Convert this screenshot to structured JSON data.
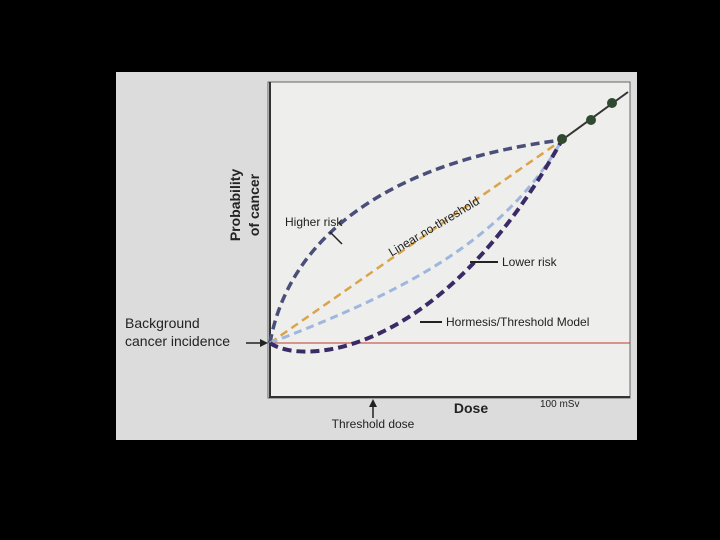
{
  "axes": {
    "y_label": [
      "Probability",
      "of cancer"
    ],
    "x_label": "Dose",
    "x_marker": "100 mSv"
  },
  "curves": {
    "higher": "Higher risk",
    "linear": "Linear no-threshold",
    "lower": "Lower risk",
    "hormesis": "Hormesis/Threshold Model"
  },
  "background": [
    "Background",
    "cancer incidence"
  ],
  "threshold": "Threshold dose"
}
